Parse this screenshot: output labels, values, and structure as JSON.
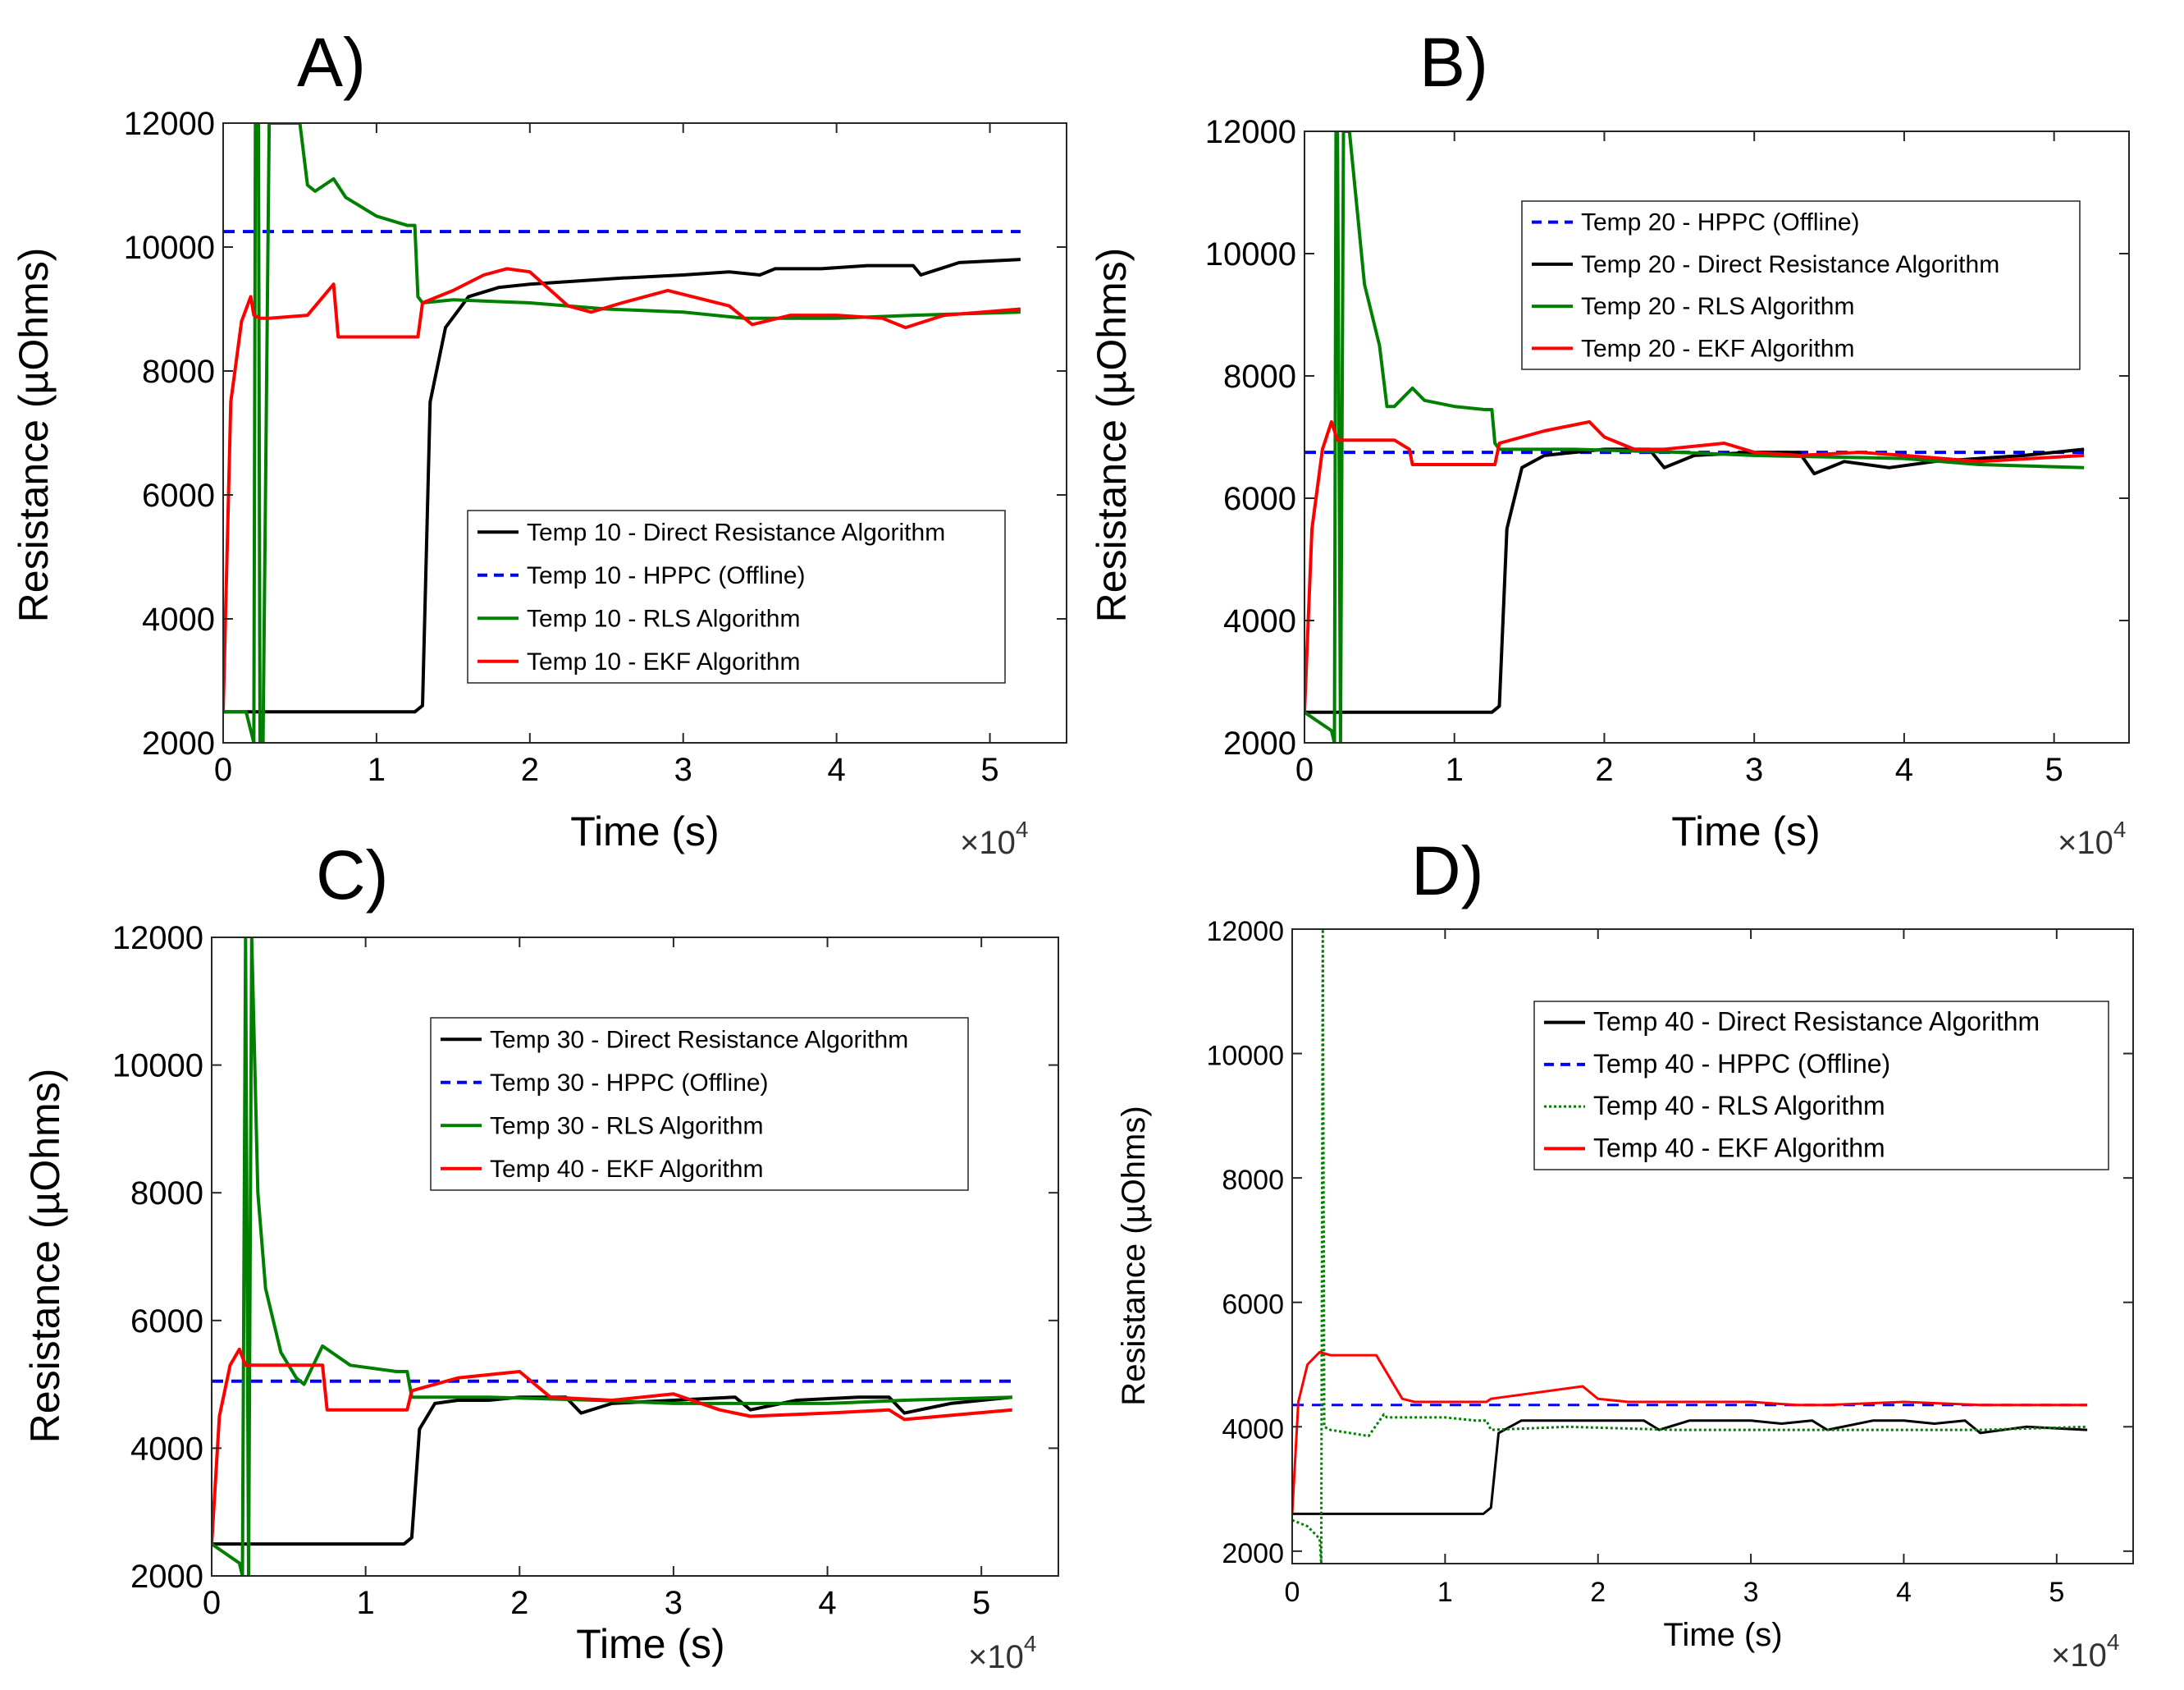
{
  "figure": {
    "panel_letters": [
      "A)",
      "B)",
      "C)",
      "D)"
    ],
    "colors": {
      "direct": "#000000",
      "hppc": "#0000ff",
      "rls": "#008000",
      "ekf": "#ff0000"
    }
  },
  "chart_data": [
    {
      "type": "line",
      "panel": "A)",
      "xlabel": "Time (s)",
      "ylabel": "Resistance (µOhms)",
      "x_multiplier": "×10",
      "x_multiplier_exp": "4",
      "xlim": [
        0,
        5.5
      ],
      "ylim": [
        2000,
        12000
      ],
      "xticks": [
        0,
        1,
        2,
        3,
        4,
        5
      ],
      "yticks": [
        2000,
        4000,
        6000,
        8000,
        10000,
        12000
      ],
      "legend_position": "center-right",
      "series": [
        {
          "name": "Temp 10 - Direct Resistance Algorithm",
          "role": "direct",
          "x": [
            0,
            1.25,
            1.3,
            1.35,
            1.45,
            1.6,
            1.8,
            2.0,
            2.3,
            2.6,
            3.0,
            3.3,
            3.5,
            3.6,
            3.9,
            4.2,
            4.5,
            4.55,
            4.8,
            5.2
          ],
          "y": [
            2500,
            2500,
            2600,
            7500,
            8700,
            9200,
            9350,
            9400,
            9450,
            9500,
            9550,
            9600,
            9550,
            9650,
            9650,
            9700,
            9700,
            9550,
            9750,
            9800
          ]
        },
        {
          "name": "Temp 10 - HPPC (Offline)",
          "role": "hppc",
          "x": [
            0,
            5.2
          ],
          "y": [
            10250,
            10250
          ]
        },
        {
          "name": "Temp 10 - RLS Algorithm",
          "role": "rls",
          "x": [
            0,
            0.15,
            0.18,
            0.2,
            0.21,
            0.22,
            0.23,
            0.24,
            0.26,
            0.3,
            0.4,
            0.5,
            0.55,
            0.6,
            0.72,
            0.8,
            1.0,
            1.2,
            1.25,
            1.27,
            1.3,
            1.5,
            2.0,
            2.5,
            3.0,
            3.4,
            4.0,
            4.5,
            5.2
          ],
          "y": [
            2500,
            2500,
            2200,
            2000,
            12000,
            12000,
            12000,
            2000,
            2000,
            12000,
            12000,
            12000,
            11000,
            10900,
            11100,
            10800,
            10500,
            10350,
            10350,
            9200,
            9100,
            9150,
            9100,
            9000,
            8950,
            8850,
            8850,
            8900,
            8950
          ]
        },
        {
          "name": "Temp 10 - EKF Algorithm",
          "role": "ekf",
          "x": [
            0,
            0.05,
            0.12,
            0.18,
            0.2,
            0.24,
            0.3,
            0.55,
            0.72,
            0.75,
            1.0,
            1.27,
            1.3,
            1.5,
            1.7,
            1.85,
            2.0,
            2.25,
            2.4,
            2.6,
            2.9,
            3.3,
            3.45,
            3.7,
            4.0,
            4.3,
            4.45,
            4.7,
            5.2
          ],
          "y": [
            2500,
            7500,
            8800,
            9200,
            8900,
            8850,
            8850,
            8900,
            9400,
            8550,
            8550,
            8550,
            9100,
            9300,
            9550,
            9650,
            9600,
            9050,
            8950,
            9100,
            9300,
            9050,
            8750,
            8900,
            8900,
            8850,
            8700,
            8900,
            9000
          ]
        }
      ]
    },
    {
      "type": "line",
      "panel": "B)",
      "xlabel": "Time (s)",
      "ylabel": "Resistance (µOhms)",
      "x_multiplier": "×10",
      "x_multiplier_exp": "4",
      "xlim": [
        0,
        5.5
      ],
      "ylim": [
        2000,
        12000
      ],
      "xticks": [
        0,
        1,
        2,
        3,
        4,
        5
      ],
      "yticks": [
        2000,
        4000,
        6000,
        8000,
        10000,
        12000
      ],
      "legend_position": "top-right",
      "series": [
        {
          "name": "Temp 20 - HPPC (Offline)",
          "role": "hppc",
          "x": [
            0,
            5.2
          ],
          "y": [
            6750,
            6750
          ]
        },
        {
          "name": "Temp 20 - Direct Resistance Algorithm",
          "role": "direct",
          "x": [
            0,
            1.25,
            1.3,
            1.35,
            1.45,
            1.6,
            1.8,
            2.0,
            2.3,
            2.4,
            2.6,
            3.0,
            3.3,
            3.4,
            3.6,
            3.9,
            4.2,
            4.5,
            4.8,
            5.2
          ],
          "y": [
            2500,
            2500,
            2600,
            5500,
            6500,
            6700,
            6750,
            6800,
            6800,
            6500,
            6700,
            6750,
            6750,
            6400,
            6600,
            6500,
            6600,
            6650,
            6700,
            6800
          ]
        },
        {
          "name": "Temp 20 - RLS Algorithm",
          "role": "rls",
          "x": [
            0,
            0.18,
            0.2,
            0.21,
            0.22,
            0.24,
            0.26,
            0.3,
            0.4,
            0.5,
            0.55,
            0.6,
            0.72,
            0.8,
            1.0,
            1.2,
            1.25,
            1.27,
            1.3,
            1.8,
            2.5,
            3.0,
            4.0,
            4.5,
            5.2
          ],
          "y": [
            2500,
            2200,
            2000,
            12000,
            12000,
            2000,
            12000,
            12000,
            9500,
            8500,
            7500,
            7500,
            7800,
            7600,
            7500,
            7450,
            7450,
            6900,
            6800,
            6800,
            6750,
            6700,
            6650,
            6550,
            6500
          ]
        },
        {
          "name": "Temp 20 - EKF Algorithm",
          "role": "ekf",
          "x": [
            0,
            0.05,
            0.12,
            0.18,
            0.22,
            0.3,
            0.6,
            0.7,
            0.72,
            1.0,
            1.27,
            1.3,
            1.6,
            1.9,
            2.0,
            2.2,
            2.4,
            2.8,
            3.0,
            3.3,
            3.7,
            4.0,
            4.5,
            5.2
          ],
          "y": [
            2500,
            5500,
            6800,
            7250,
            6950,
            6950,
            6950,
            6800,
            6550,
            6550,
            6550,
            6900,
            7100,
            7250,
            7000,
            6800,
            6800,
            6900,
            6750,
            6700,
            6750,
            6700,
            6600,
            6700
          ]
        }
      ]
    },
    {
      "type": "line",
      "panel": "C)",
      "xlabel": "Time (s)",
      "ylabel": "Resistance (µOhms)",
      "x_multiplier": "×10",
      "x_multiplier_exp": "4",
      "xlim": [
        0,
        5.5
      ],
      "ylim": [
        2000,
        12000
      ],
      "xticks": [
        0,
        1,
        2,
        3,
        4,
        5
      ],
      "yticks": [
        2000,
        4000,
        6000,
        8000,
        10000,
        12000
      ],
      "legend_position": "top-right",
      "series": [
        {
          "name": "Temp 30 - Direct Resistance Algorithm",
          "role": "direct",
          "x": [
            0,
            1.25,
            1.3,
            1.35,
            1.45,
            1.6,
            1.8,
            2.0,
            2.3,
            2.4,
            2.6,
            3.0,
            3.4,
            3.5,
            3.8,
            4.2,
            4.4,
            4.5,
            4.8,
            5.2
          ],
          "y": [
            2500,
            2500,
            2600,
            4300,
            4700,
            4750,
            4750,
            4800,
            4800,
            4550,
            4700,
            4750,
            4800,
            4600,
            4750,
            4800,
            4800,
            4550,
            4700,
            4800
          ]
        },
        {
          "name": "Temp 30 - HPPC (Offline)",
          "role": "hppc",
          "x": [
            0,
            5.2
          ],
          "y": [
            5050,
            5050
          ]
        },
        {
          "name": "Temp 30 - RLS Algorithm",
          "role": "rls",
          "x": [
            0,
            0.18,
            0.2,
            0.22,
            0.24,
            0.26,
            0.3,
            0.35,
            0.45,
            0.55,
            0.6,
            0.72,
            0.9,
            1.2,
            1.27,
            1.3,
            1.8,
            2.5,
            3.0,
            3.5,
            4.0,
            4.5,
            5.2
          ],
          "y": [
            2500,
            2200,
            2000,
            12000,
            2000,
            12000,
            8000,
            6500,
            5500,
            5100,
            5000,
            5600,
            5300,
            5200,
            5200,
            4800,
            4800,
            4750,
            4700,
            4700,
            4700,
            4750,
            4800
          ]
        },
        {
          "name": "Temp 40 - EKF Algorithm",
          "role": "ekf",
          "x": [
            0,
            0.05,
            0.12,
            0.18,
            0.22,
            0.3,
            0.55,
            0.72,
            0.75,
            1.0,
            1.27,
            1.3,
            1.6,
            1.8,
            2.0,
            2.2,
            2.6,
            3.0,
            3.3,
            3.5,
            4.0,
            4.4,
            4.5,
            5.2
          ],
          "y": [
            2500,
            4500,
            5300,
            5550,
            5300,
            5300,
            5300,
            5300,
            4600,
            4600,
            4600,
            4900,
            5100,
            5150,
            5200,
            4800,
            4750,
            4850,
            4600,
            4500,
            4550,
            4600,
            4450,
            4600
          ]
        }
      ]
    },
    {
      "type": "line",
      "panel": "D)",
      "xlabel": "Time (s)",
      "ylabel": "Resistance (µOhms)",
      "x_multiplier": "×10",
      "x_multiplier_exp": "4",
      "xlim": [
        0,
        5.5
      ],
      "ylim": [
        1800,
        12000
      ],
      "xticks": [
        0,
        1,
        2,
        3,
        4,
        5
      ],
      "yticks": [
        2000,
        4000,
        6000,
        8000,
        10000,
        12000
      ],
      "legend_position": "top-right",
      "series": [
        {
          "name": "Temp 40 - Direct Resistance Algorithm",
          "role": "direct",
          "x": [
            0,
            1.25,
            1.3,
            1.35,
            1.5,
            1.8,
            2.0,
            2.3,
            2.4,
            2.6,
            3.0,
            3.2,
            3.4,
            3.5,
            3.8,
            4.0,
            4.2,
            4.4,
            4.5,
            4.8,
            5.2
          ],
          "y": [
            2600,
            2600,
            2700,
            3900,
            4100,
            4100,
            4100,
            4100,
            3950,
            4100,
            4100,
            4050,
            4100,
            3950,
            4100,
            4100,
            4050,
            4100,
            3900,
            4000,
            3950
          ]
        },
        {
          "name": "Temp 40 - HPPC (Offline)",
          "role": "hppc",
          "x": [
            0,
            5.2
          ],
          "y": [
            4350,
            4350
          ]
        },
        {
          "name": "Temp 40 - RLS Algorithm",
          "role": "rls",
          "x": [
            0,
            0.1,
            0.18,
            0.19,
            0.2,
            0.21,
            0.25,
            0.5,
            0.6,
            0.62,
            1.0,
            1.2,
            1.27,
            1.3,
            1.8,
            2.5,
            3.0,
            3.5,
            4.0,
            4.5,
            5.2
          ],
          "y": [
            2500,
            2400,
            2200,
            1800,
            12000,
            4000,
            3950,
            3850,
            4200,
            4150,
            4150,
            4100,
            4100,
            3950,
            4000,
            3950,
            3950,
            3950,
            3950,
            3950,
            4000
          ]
        },
        {
          "name": "Temp 40 - EKF Algorithm",
          "role": "ekf",
          "x": [
            0,
            0.04,
            0.1,
            0.18,
            0.25,
            0.5,
            0.55,
            0.72,
            0.8,
            1.0,
            1.27,
            1.3,
            1.6,
            1.9,
            2.0,
            2.2,
            2.6,
            3.0,
            3.3,
            3.5,
            4.0,
            4.5,
            5.2
          ],
          "y": [
            2600,
            4400,
            5000,
            5200,
            5150,
            5150,
            5150,
            4450,
            4400,
            4400,
            4400,
            4450,
            4550,
            4650,
            4450,
            4400,
            4400,
            4400,
            4350,
            4350,
            4400,
            4350,
            4350
          ]
        }
      ]
    }
  ]
}
